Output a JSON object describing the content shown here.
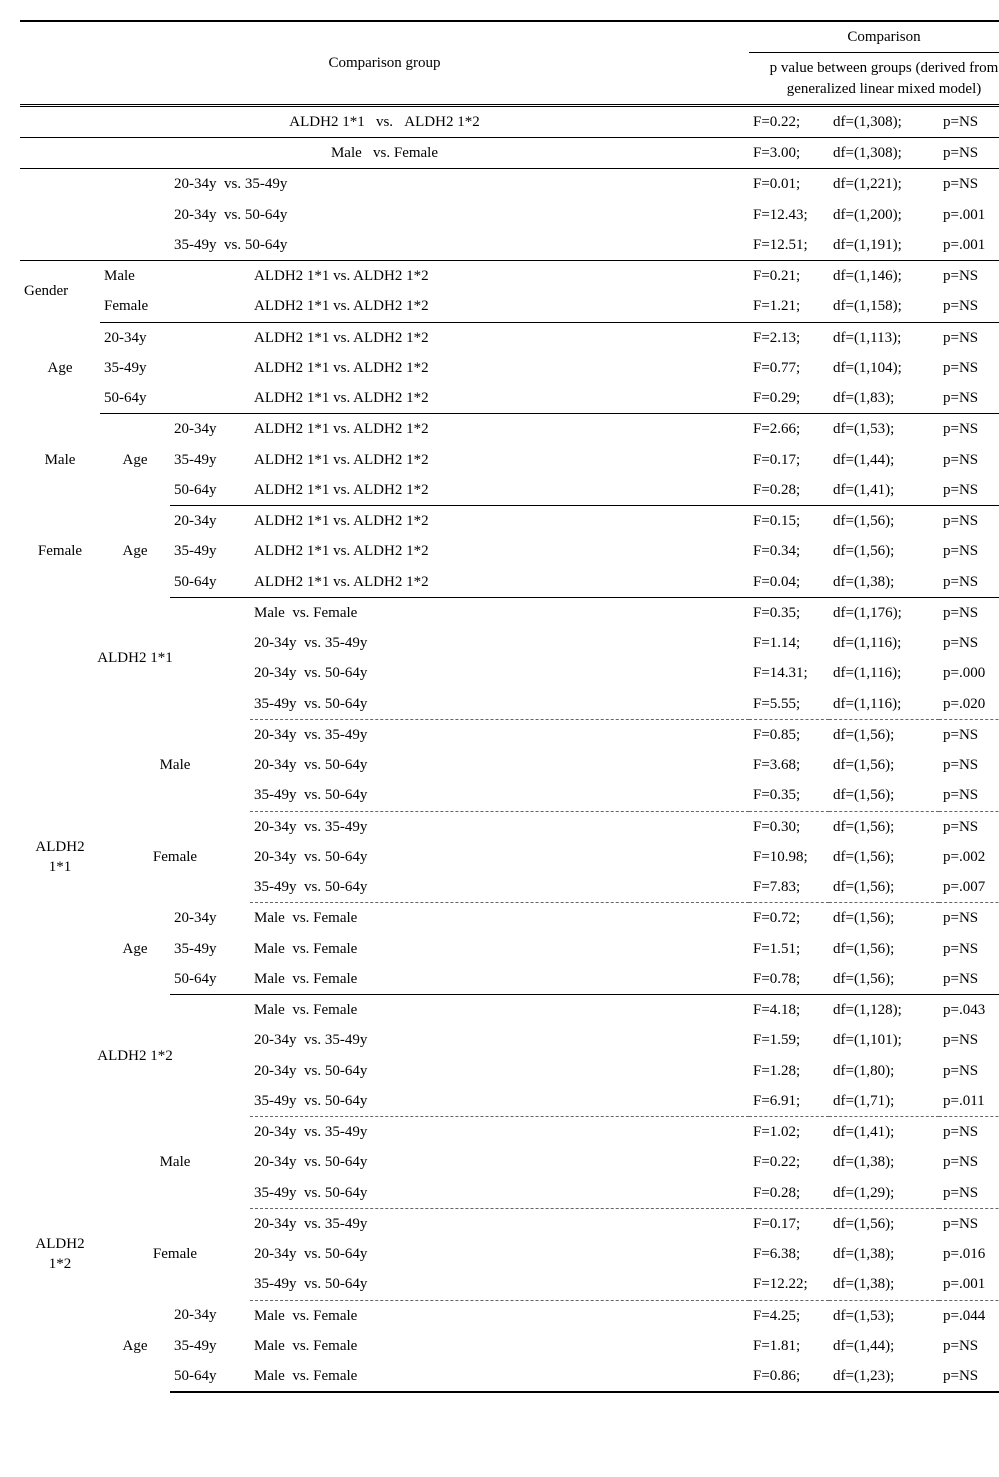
{
  "header": {
    "group_label": "Comparison group",
    "cmp_label": "Comparison",
    "cmp_sub": "p value between groups (derived from generalized linear mixed model)"
  },
  "cmp": {
    "aldh": "ALDH2 1*1   vs.   ALDH2 1*2",
    "mf": "Male   vs. Female",
    "a12": "20-34y  vs. 35-49y",
    "a13": "20-34y  vs. 50-64y",
    "a23": "35-49y  vs. 50-64y",
    "aldh_s": "ALDH2 1*1 vs. ALDH2 1*2",
    "mf_s": "Male  vs. Female"
  },
  "lbl": {
    "gender": "Gender",
    "age": "Age",
    "male": "Male",
    "female": "Female",
    "a1": "20-34y",
    "a2": "35-49y",
    "a3": "50-64y",
    "aldh11": "ALDH2 1*1",
    "aldh12": "ALDH2 1*2",
    "aldh11_br1": "ALDH2",
    "aldh11_br2": "1*1",
    "aldh12_br1": "ALDH2",
    "aldh12_br2": "1*2"
  },
  "r": {
    "r1": {
      "f": "F=0.22;",
      "df": "df=(1,308);",
      "p": "p=NS"
    },
    "r2": {
      "f": "F=3.00;",
      "df": "df=(1,308);",
      "p": "p=NS"
    },
    "r3": {
      "f": "F=0.01;",
      "df": "df=(1,221);",
      "p": "p=NS"
    },
    "r4": {
      "f": "F=12.43;",
      "df": "df=(1,200);",
      "p": "p=.001"
    },
    "r5": {
      "f": "F=12.51;",
      "df": "df=(1,191);",
      "p": "p=.001"
    },
    "r6": {
      "f": "F=0.21;",
      "df": "df=(1,146);",
      "p": "p=NS"
    },
    "r7": {
      "f": "F=1.21;",
      "df": "df=(1,158);",
      "p": "p=NS"
    },
    "r8": {
      "f": "F=2.13;",
      "df": "df=(1,113);",
      "p": "p=NS"
    },
    "r9": {
      "f": "F=0.77;",
      "df": "df=(1,104);",
      "p": "p=NS"
    },
    "r10": {
      "f": "F=0.29;",
      "df": "df=(1,83);",
      "p": "p=NS"
    },
    "r11": {
      "f": "F=2.66;",
      "df": "df=(1,53);",
      "p": "p=NS"
    },
    "r12": {
      "f": "F=0.17;",
      "df": "df=(1,44);",
      "p": "p=NS"
    },
    "r13": {
      "f": "F=0.28;",
      "df": "df=(1,41);",
      "p": "p=NS"
    },
    "r14": {
      "f": "F=0.15;",
      "df": "df=(1,56);",
      "p": "p=NS"
    },
    "r15": {
      "f": "F=0.34;",
      "df": "df=(1,56);",
      "p": "p=NS"
    },
    "r16": {
      "f": "F=0.04;",
      "df": "df=(1,38);",
      "p": "p=NS"
    },
    "r17": {
      "f": "F=0.35;",
      "df": "df=(1,176);",
      "p": "p=NS"
    },
    "r18": {
      "f": "F=1.14;",
      "df": "df=(1,116);",
      "p": "p=NS"
    },
    "r19": {
      "f": "F=14.31;",
      "df": "df=(1,116);",
      "p": "p=.000"
    },
    "r20": {
      "f": "F=5.55;",
      "df": "df=(1,116);",
      "p": "p=.020"
    },
    "r21": {
      "f": "F=0.85;",
      "df": "df=(1,56);",
      "p": "p=NS"
    },
    "r22": {
      "f": "F=3.68;",
      "df": "df=(1,56);",
      "p": "p=NS"
    },
    "r23": {
      "f": "F=0.35;",
      "df": "df=(1,56);",
      "p": "p=NS"
    },
    "r24": {
      "f": "F=0.30;",
      "df": "df=(1,56);",
      "p": "p=NS"
    },
    "r25": {
      "f": "F=10.98;",
      "df": "df=(1,56);",
      "p": "p=.002"
    },
    "r26": {
      "f": "F=7.83;",
      "df": "df=(1,56);",
      "p": "p=.007"
    },
    "r27": {
      "f": "F=0.72;",
      "df": "df=(1,56);",
      "p": "p=NS"
    },
    "r28": {
      "f": "F=1.51;",
      "df": "df=(1,56);",
      "p": "p=NS"
    },
    "r29": {
      "f": "F=0.78;",
      "df": "df=(1,56);",
      "p": "p=NS"
    },
    "r30": {
      "f": "F=4.18;",
      "df": "df=(1,128);",
      "p": "p=.043"
    },
    "r31": {
      "f": "F=1.59;",
      "df": "df=(1,101);",
      "p": "p=NS"
    },
    "r32": {
      "f": "F=1.28;",
      "df": "df=(1,80);",
      "p": "p=NS"
    },
    "r33": {
      "f": "F=6.91;",
      "df": "df=(1,71);",
      "p": "p=.011"
    },
    "r34": {
      "f": "F=1.02;",
      "df": "df=(1,41);",
      "p": "p=NS"
    },
    "r35": {
      "f": "F=0.22;",
      "df": "df=(1,38);",
      "p": "p=NS"
    },
    "r36": {
      "f": "F=0.28;",
      "df": "df=(1,29);",
      "p": "p=NS"
    },
    "r37": {
      "f": "F=0.17;",
      "df": "df=(1,56);",
      "p": "p=NS"
    },
    "r38": {
      "f": "F=6.38;",
      "df": "df=(1,38);",
      "p": "p=.016"
    },
    "r39": {
      "f": "F=12.22;",
      "df": "df=(1,38);",
      "p": "p=.001"
    },
    "r40": {
      "f": "F=4.25;",
      "df": "df=(1,53);",
      "p": "p=.044"
    },
    "r41": {
      "f": "F=1.81;",
      "df": "df=(1,44);",
      "p": "p=NS"
    },
    "r42": {
      "f": "F=0.86;",
      "df": "df=(1,23);",
      "p": "p=NS"
    }
  }
}
